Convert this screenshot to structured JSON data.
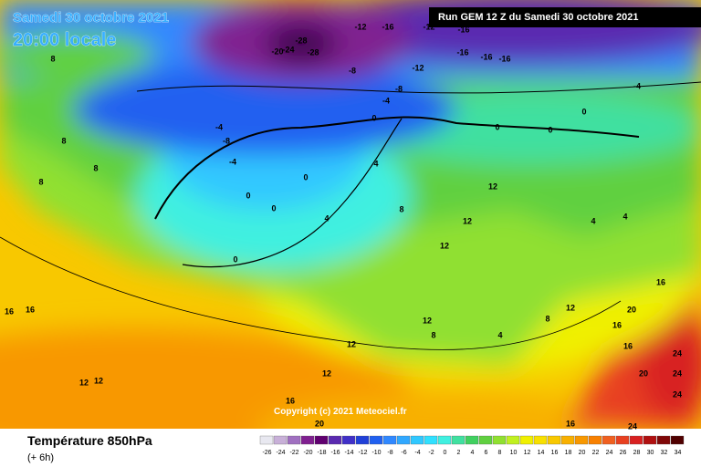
{
  "header": {
    "date": "Samedi 30 octobre 2021",
    "time": "20:00 locale",
    "run": "Run GEM 12 Z du Samedi 30 octobre 2021"
  },
  "footer": {
    "title": "Température 850hPa",
    "lead": "(+ 6h)",
    "copyright": "Copyright (c) 2021 Meteociel.fr"
  },
  "colorbar": {
    "ticks": [
      -26,
      -24,
      -22,
      -20,
      -18,
      -16,
      -14,
      -12,
      -10,
      -8,
      -6,
      -4,
      -2,
      0,
      2,
      4,
      6,
      8,
      10,
      12,
      14,
      16,
      18,
      20,
      22,
      24,
      26,
      28,
      30,
      32,
      34
    ],
    "colors": [
      "#e8e8f0",
      "#c8b0d8",
      "#a070c0",
      "#802090",
      "#600070",
      "#5a2ab0",
      "#4030c8",
      "#2040d8",
      "#2060f0",
      "#3088ff",
      "#30a8ff",
      "#30c8ff",
      "#30e0ff",
      "#40f0e0",
      "#40e0a0",
      "#40d060",
      "#60d040",
      "#90e030",
      "#c0f020",
      "#f0f000",
      "#f8e000",
      "#f8c800",
      "#f8b000",
      "#f89800",
      "#f88000",
      "#f06020",
      "#e84020",
      "#d82020",
      "#b01010",
      "#800808",
      "#500000"
    ]
  },
  "contour_labels": [
    -28,
    -28,
    -24,
    -20,
    -12,
    -16,
    -12,
    -16,
    -16,
    -16,
    -16,
    -12,
    -8,
    -4,
    -8,
    -4,
    0,
    0,
    0,
    0,
    -4,
    -8,
    -4,
    0,
    0,
    0,
    0,
    4,
    4,
    8,
    12,
    12,
    12,
    8,
    8,
    8,
    8,
    16,
    16,
    12,
    12,
    12,
    12,
    16,
    20,
    16,
    24,
    24,
    24,
    24,
    20,
    16,
    16,
    20,
    16,
    4,
    8,
    12,
    4,
    4,
    12,
    8
  ]
}
